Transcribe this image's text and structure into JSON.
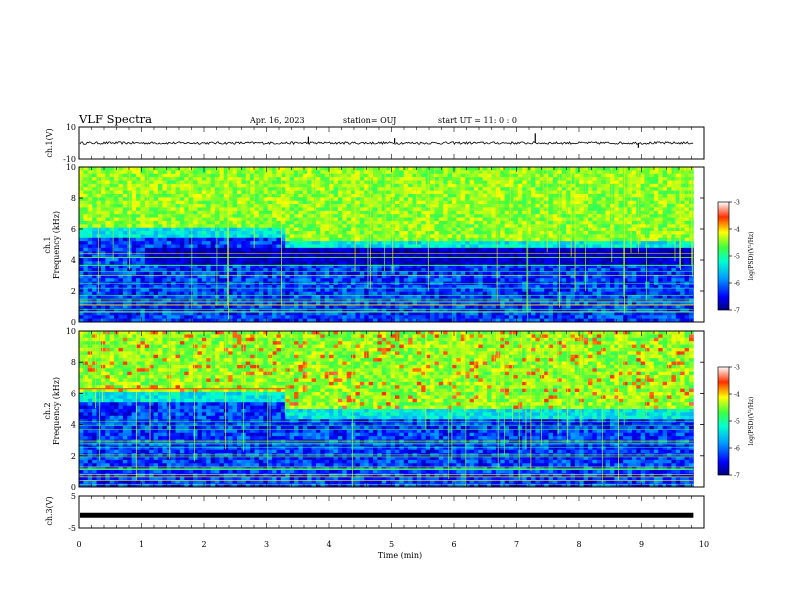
{
  "header": {
    "title": "VLF Spectra",
    "date": "Apr. 16, 2023",
    "station": "station= OUJ",
    "start": "start  UT =   11: 0  : 0"
  },
  "chart_data": [
    {
      "type": "line",
      "panel": "ch1-waveform",
      "ylabel": "ch.1(V)",
      "ylim": [
        -10,
        10
      ],
      "ytick_labels": [
        "10",
        "-10"
      ],
      "baseline": 0,
      "spikes": [
        {
          "x": 3.67,
          "y": 4
        },
        {
          "x": 5.05,
          "y": 3
        },
        {
          "x": 7.3,
          "y": 6
        },
        {
          "x": 8.95,
          "y": -3
        }
      ]
    },
    {
      "type": "heatmap",
      "panel": "ch1-spectrogram",
      "ylabel": "ch.1\nFrequency (kHz)",
      "ylim": [
        0,
        10
      ],
      "ytick_labels": [
        "0",
        "2",
        "4",
        "6",
        "8",
        "10"
      ],
      "colorbar": {
        "label": "log(PSD)(V²/Hz)",
        "range": [
          -7,
          -3
        ],
        "tick_labels": [
          "-3",
          "-4",
          "-5",
          "-6",
          "-7"
        ]
      },
      "features": {
        "upper_band_edge_khz_before_3_3min": 6.0,
        "upper_band_edge_khz_after_3_3min": 5.2,
        "dark_band_khz": [
          3.6,
          4.8
        ]
      }
    },
    {
      "type": "heatmap",
      "panel": "ch2-spectrogram",
      "ylabel": "ch.2\nFrequency (kHz)",
      "ylim": [
        0,
        10
      ],
      "ytick_labels": [
        "0",
        "2",
        "4",
        "6",
        "8",
        "10"
      ],
      "colorbar": {
        "label": "log(PSD)(V²/Hz)",
        "range": [
          -7,
          -3
        ],
        "tick_labels": [
          "-3",
          "-4",
          "-5",
          "-6",
          "-7"
        ]
      },
      "features": {
        "upper_band_edge_khz_before_3_3min": 6.0,
        "red_line_khz": 6.3
      }
    },
    {
      "type": "line",
      "panel": "ch3-waveform",
      "ylabel": "ch.3(V)",
      "ylim": [
        -5,
        5
      ],
      "ytick_labels": [
        "5",
        "-5"
      ],
      "baseline": -1,
      "xlabel": "Time (min)",
      "xlim": [
        0,
        10
      ],
      "xtick_labels": [
        "0",
        "1",
        "2",
        "3",
        "4",
        "5",
        "6",
        "7",
        "8",
        "9",
        "10"
      ],
      "data_end_min": 9.83
    }
  ]
}
